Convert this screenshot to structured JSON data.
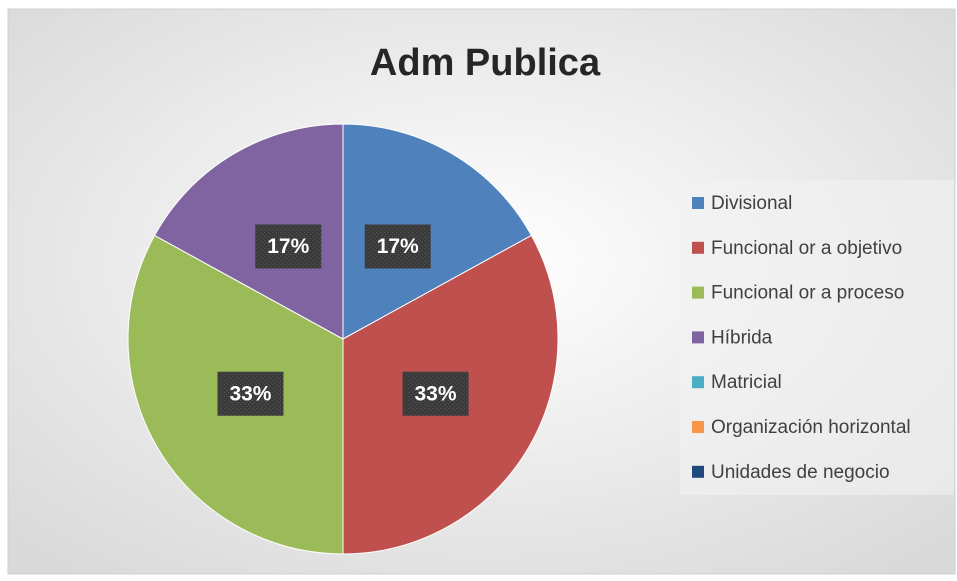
{
  "chart_data": {
    "type": "pie",
    "title": "Adm Publica",
    "categories": [
      "Divisional",
      "Funcional or a objetivo",
      "Funcional or a proceso",
      "Híbrida",
      "Matricial",
      "Organización horizontal",
      "Unidades de negocio"
    ],
    "values": [
      17,
      33,
      33,
      17,
      0,
      0,
      0
    ],
    "value_labels": [
      "17%",
      "33%",
      "33%",
      "17%",
      null,
      null,
      null
    ],
    "colors": [
      "#4f81bd",
      "#c0504d",
      "#9bbb59",
      "#8064a2",
      "#4bacc6",
      "#f79646",
      "#1f497d"
    ],
    "legend": "right"
  }
}
